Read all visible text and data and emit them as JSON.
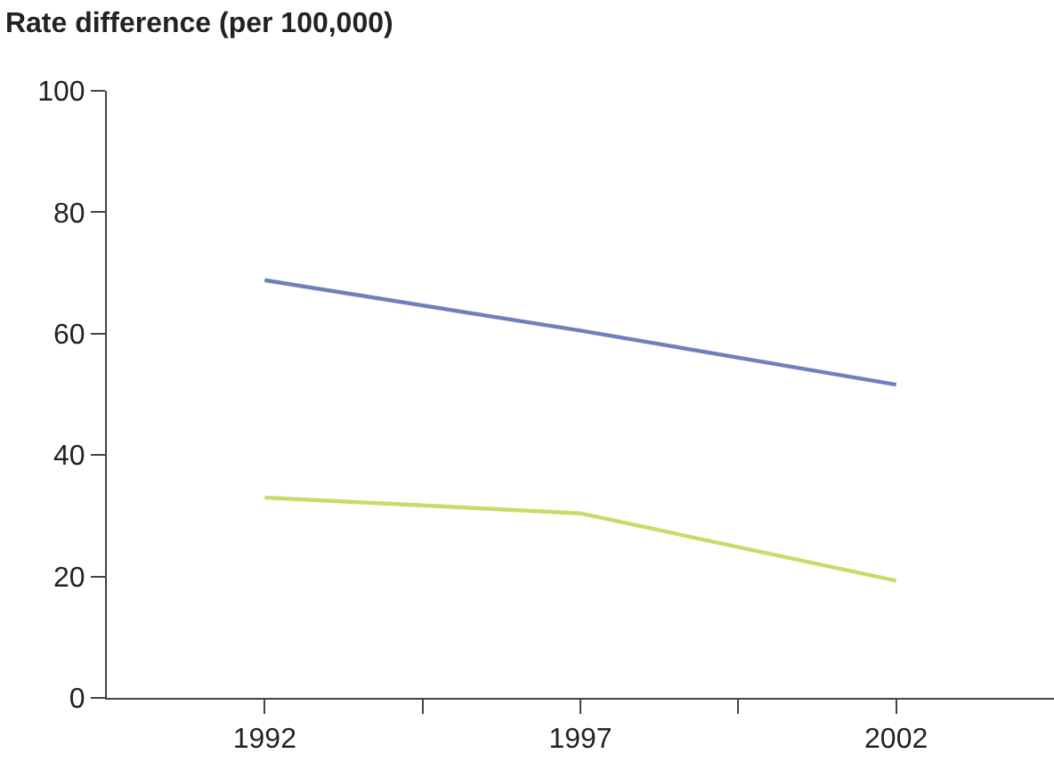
{
  "chart_data": {
    "type": "line",
    "title": "Rate difference (per 100,000)",
    "x": [
      1992,
      1997,
      2002
    ],
    "series": [
      {
        "color": "#6f80bb",
        "values": [
          68.8,
          60.5,
          51.6
        ]
      },
      {
        "color": "#c8dc6a",
        "values": [
          33.0,
          30.4,
          19.3
        ]
      }
    ],
    "xlim": [
      1989.5,
      2004.5
    ],
    "xticks": [
      1992,
      {
        "value": 1994.5,
        "label": null
      },
      1997,
      {
        "value": 1999.5,
        "label": null
      },
      2002
    ],
    "ylim": [
      0,
      100
    ],
    "yticks": [
      0,
      20,
      40,
      60,
      80,
      100
    ],
    "marker": "none",
    "line_style": "solid"
  }
}
